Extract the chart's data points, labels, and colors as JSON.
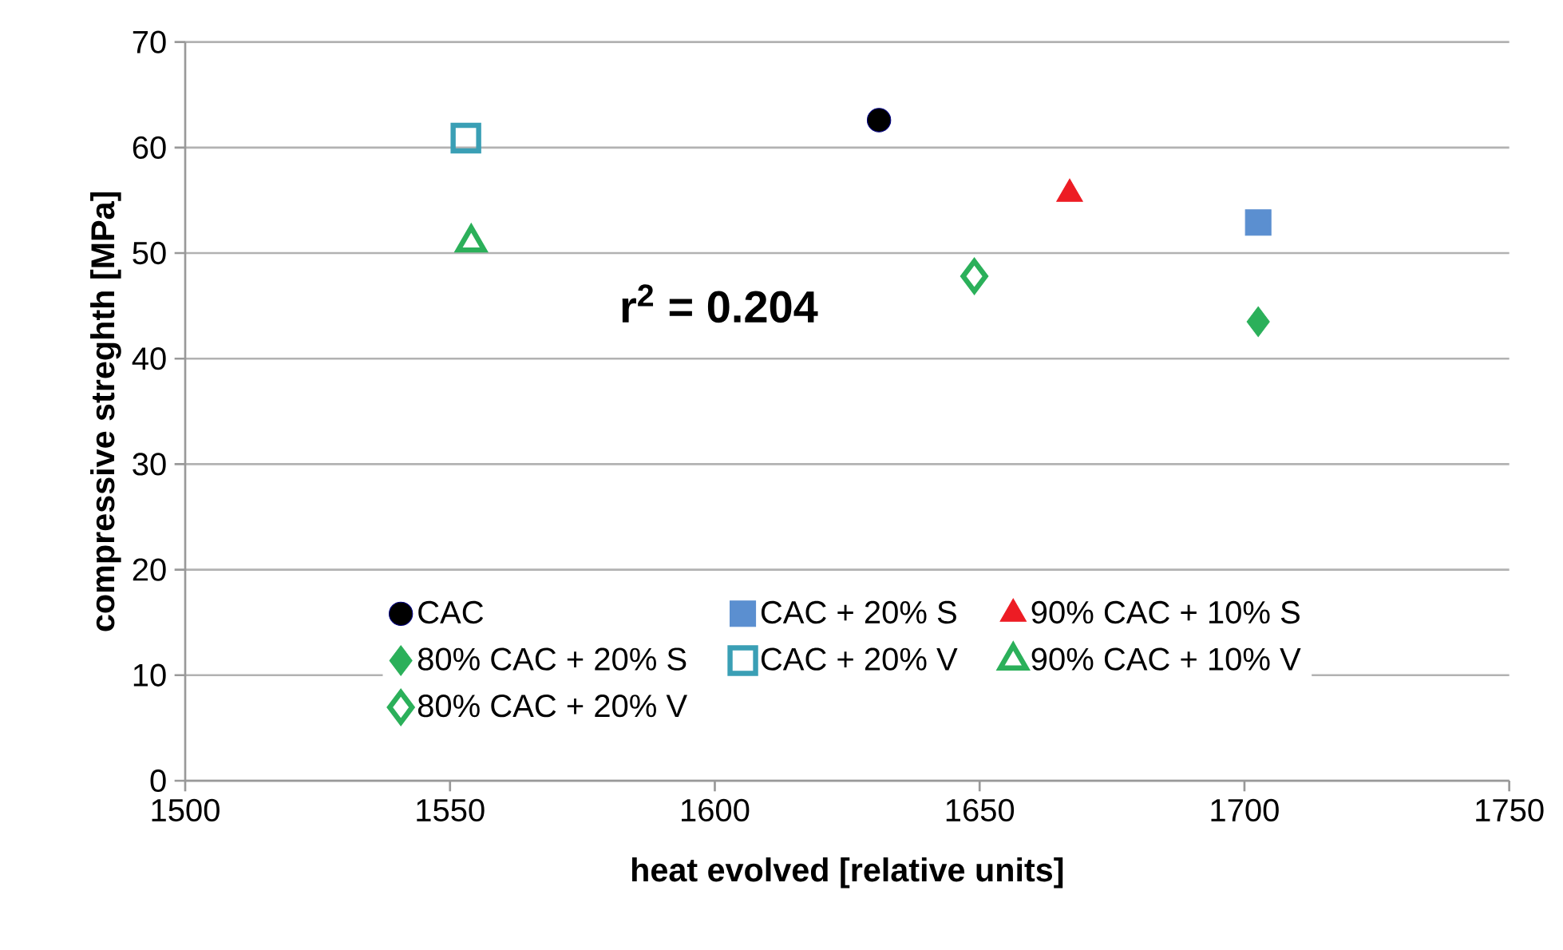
{
  "chart_data": {
    "type": "scatter",
    "xlabel": "heat evolved [relative units]",
    "ylabel": "compressive streghth [MPa]",
    "xlim": [
      1500,
      1750
    ],
    "xticks": [
      1500,
      1550,
      1600,
      1650,
      1700,
      1750
    ],
    "ylim": [
      0,
      70
    ],
    "yticks": [
      0,
      10,
      20,
      30,
      40,
      50,
      60,
      70
    ],
    "grid": "y",
    "legend": "bottom",
    "annotations": [
      "r$^{2}$ = 0.204"
    ],
    "series": [
      {
        "name": "CAC",
        "color": "#000000",
        "marker": "circle",
        "x": [
          1631
        ],
        "values": [
          62.6
        ]
      },
      {
        "name": "CAC + 20% S",
        "color": "#5b8fd0",
        "marker": "square",
        "x": [
          1702.6
        ],
        "values": [
          52.9
        ]
      },
      {
        "name": "90% CAC + 10% S",
        "color": "#ed1c24",
        "marker": "triangle",
        "x": [
          1667
        ],
        "values": [
          55.6
        ]
      },
      {
        "name": "80% CAC + 20% S",
        "color": "#2bb05a",
        "marker": "diamond",
        "x": [
          1702.6
        ],
        "values": [
          43.5
        ]
      },
      {
        "name": "CAC + 20% V",
        "color": "#3a9fb5",
        "marker": "square-open",
        "x": [
          1553
        ],
        "values": [
          60.9
        ]
      },
      {
        "name": "90% CAC + 10% V",
        "color": "#2bb05a",
        "marker": "triangle-open",
        "x": [
          1554
        ],
        "values": [
          51
        ]
      },
      {
        "name": "80% CAC + 20% V",
        "color": "#2bb05a",
        "marker": "diamond-open",
        "x": [
          1649
        ],
        "values": [
          47.8
        ]
      }
    ]
  }
}
